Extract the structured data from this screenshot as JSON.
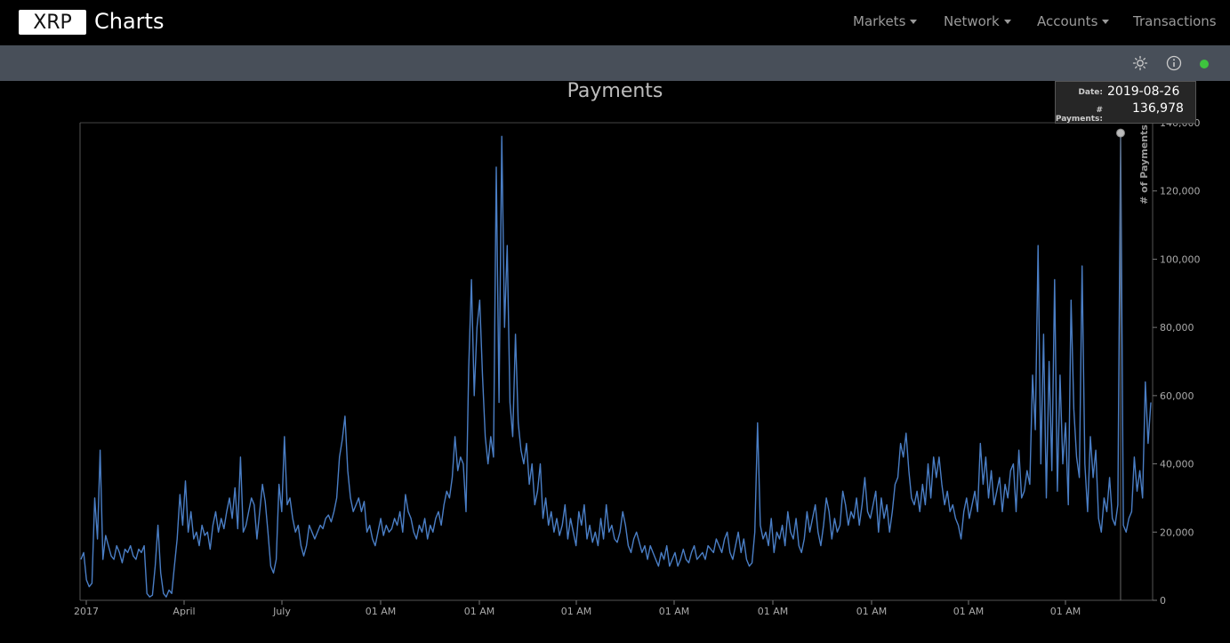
{
  "header": {
    "logo": "XRP",
    "title": "Charts",
    "nav": [
      {
        "label": "Markets",
        "dropdown": true
      },
      {
        "label": "Network",
        "dropdown": true
      },
      {
        "label": "Accounts",
        "dropdown": true
      },
      {
        "label": "Transactions",
        "dropdown": false
      }
    ]
  },
  "toolbar": {
    "icons": [
      "sun-icon",
      "info-icon",
      "status-dot-icon"
    ],
    "status_color": "#3ec43e"
  },
  "tooltip": {
    "date_label": "Date:",
    "date_value": "2019-08-26",
    "payments_label": "# Payments:",
    "payments_value": "136,978"
  },
  "chart_data": {
    "type": "line",
    "title": "Payments",
    "ylabel": "# of Payments",
    "ylim": [
      0,
      140000
    ],
    "y_ticks": [
      0,
      20000,
      40000,
      60000,
      80000,
      100000,
      120000,
      140000
    ],
    "y_tick_labels": [
      "0",
      "20,000",
      "40,000",
      "60,000",
      "80,000",
      "100,000",
      "120,000",
      "140,000"
    ],
    "x_tick_labels": [
      "2017",
      "April",
      "July",
      "01 AM",
      "01 AM",
      "01 AM",
      "01 AM",
      "01 AM",
      "01 AM",
      "01 AM",
      "01 AM"
    ],
    "x_range": [
      "2017-01-01",
      "2019-09-03"
    ],
    "series_color": "#4a7ec5",
    "series": [
      {
        "values": [
          12000,
          14000,
          6000,
          4000,
          5000,
          30000,
          18000,
          44000,
          12000,
          19000,
          16000,
          13000,
          12000,
          16000,
          14000,
          11000,
          15000,
          14000,
          16000,
          13000,
          12000,
          15000,
          14000,
          16000,
          2000,
          1000,
          1500,
          10000,
          22000,
          8000,
          2000,
          1000,
          3000,
          2000,
          10000,
          18000,
          31000,
          22000,
          35000,
          20000,
          26000,
          18000,
          20000,
          16000,
          22000,
          19000,
          20000,
          15000,
          22000,
          26000,
          20000,
          24000,
          21000,
          26000,
          30000,
          24000,
          33000,
          21000,
          42000,
          20000,
          22000,
          26000,
          30000,
          28000,
          18000,
          26000,
          34000,
          29000,
          20000,
          10000,
          8000,
          12000,
          34000,
          26000,
          48000,
          28000,
          30000,
          24000,
          20000,
          22000,
          16000,
          13000,
          16000,
          22000,
          20000,
          18000,
          20000,
          22000,
          21000,
          24000,
          25000,
          23000,
          26000,
          30000,
          42000,
          47000,
          54000,
          38000,
          30000,
          26000,
          28000,
          30000,
          26000,
          29000,
          20000,
          22000,
          18000,
          16000,
          20000,
          24000,
          19000,
          22000,
          20000,
          21000,
          24000,
          22000,
          26000,
          20000,
          31000,
          26000,
          24000,
          20000,
          18000,
          22000,
          20000,
          24000,
          18000,
          22000,
          20000,
          24000,
          26000,
          22000,
          28000,
          32000,
          30000,
          36000,
          48000,
          38000,
          42000,
          40000,
          26000,
          68000,
          94000,
          60000,
          80000,
          88000,
          66000,
          48000,
          40000,
          48000,
          42000,
          127000,
          58000,
          136000,
          80000,
          104000,
          58000,
          48000,
          78000,
          52000,
          44000,
          40000,
          46000,
          34000,
          40000,
          28000,
          32000,
          40000,
          24000,
          30000,
          22000,
          26000,
          20000,
          24000,
          19000,
          22000,
          28000,
          18000,
          24000,
          20000,
          16000,
          26000,
          22000,
          28000,
          18000,
          22000,
          17000,
          20000,
          16000,
          24000,
          18000,
          28000,
          20000,
          22000,
          18000,
          17000,
          20000,
          26000,
          22000,
          16000,
          14000,
          18000,
          20000,
          17000,
          14000,
          16000,
          12000,
          16000,
          14000,
          12000,
          10000,
          14000,
          12000,
          16000,
          10000,
          12000,
          14000,
          10000,
          12000,
          15000,
          12000,
          11000,
          14000,
          16000,
          12000,
          13000,
          14000,
          12000,
          16000,
          15000,
          14000,
          18000,
          16000,
          14000,
          18000,
          20000,
          14000,
          12000,
          16000,
          20000,
          14000,
          18000,
          12000,
          10000,
          11000,
          20000,
          52000,
          22000,
          18000,
          20000,
          16000,
          24000,
          14000,
          20000,
          18000,
          22000,
          16000,
          26000,
          20000,
          18000,
          24000,
          16000,
          14000,
          18000,
          26000,
          20000,
          24000,
          28000,
          20000,
          16000,
          22000,
          30000,
          26000,
          18000,
          24000,
          20000,
          22000,
          32000,
          28000,
          22000,
          26000,
          24000,
          30000,
          22000,
          28000,
          36000,
          26000,
          24000,
          28000,
          32000,
          20000,
          30000,
          24000,
          28000,
          20000,
          26000,
          34000,
          36000,
          46000,
          42000,
          49000,
          38000,
          30000,
          28000,
          32000,
          26000,
          34000,
          28000,
          40000,
          30000,
          42000,
          36000,
          42000,
          34000,
          28000,
          32000,
          26000,
          28000,
          24000,
          22000,
          18000,
          26000,
          30000,
          24000,
          28000,
          32000,
          26000,
          46000,
          34000,
          42000,
          30000,
          38000,
          28000,
          32000,
          36000,
          26000,
          34000,
          30000,
          38000,
          40000,
          26000,
          44000,
          30000,
          32000,
          38000,
          34000,
          66000,
          50000,
          104000,
          40000,
          78000,
          30000,
          70000,
          38000,
          94000,
          32000,
          66000,
          40000,
          52000,
          28000,
          88000,
          56000,
          42000,
          36000,
          98000,
          40000,
          26000,
          48000,
          36000,
          44000,
          24000,
          20000,
          30000,
          26000,
          36000,
          24000,
          22000,
          28000,
          136978,
          22000,
          20000,
          24000,
          26000,
          42000,
          32000,
          38000,
          30000,
          64000,
          46000,
          58000
        ]
      }
    ]
  }
}
